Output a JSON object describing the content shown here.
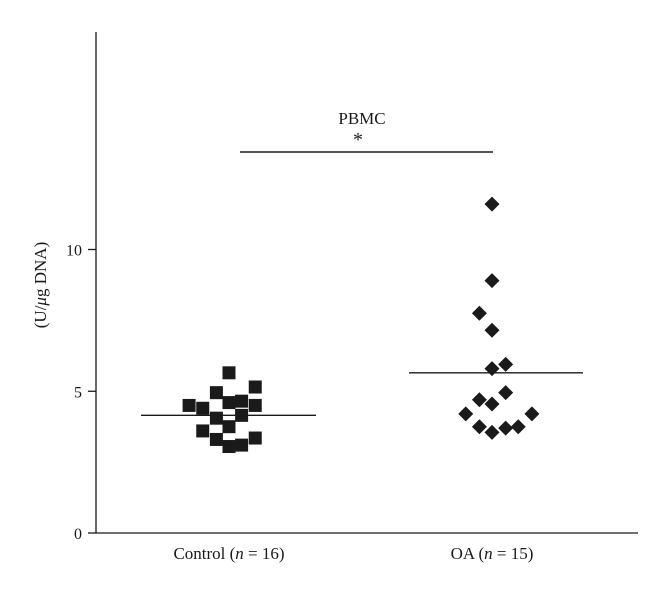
{
  "chart_data": {
    "type": "scatter",
    "title": "PBMC",
    "significance_marker": "*",
    "ylabel": "(U/μg DNA)",
    "ylabel_parts": {
      "prefix": "(U/",
      "italic": "μ",
      "suffix": "g DNA)"
    },
    "ylim": [
      0,
      14.6
    ],
    "y_ticks": [
      0,
      5,
      10
    ],
    "y_tick_labels": [
      "0",
      "5",
      "10"
    ],
    "grid": false,
    "categories": [
      {
        "id": "control",
        "name": "Control",
        "n_symbol": "n",
        "n_text": " = 16",
        "label": "Control (n = 16)"
      },
      {
        "id": "oa",
        "name": "OA",
        "n_symbol": "n",
        "n_text": " = 15",
        "label": "OA (n = 15)"
      }
    ],
    "series": [
      {
        "category": "Control",
        "marker": "square",
        "mean": 4.15,
        "points": [
          {
            "x": 1,
            "jitter": -0.38,
            "y": 4.5
          },
          {
            "x": 1,
            "jitter": -0.25,
            "y": 4.4
          },
          {
            "x": 1,
            "jitter": -0.25,
            "y": 3.6
          },
          {
            "x": 1,
            "jitter": -0.12,
            "y": 4.95
          },
          {
            "x": 1,
            "jitter": -0.12,
            "y": 4.05
          },
          {
            "x": 1,
            "jitter": -0.12,
            "y": 3.3
          },
          {
            "x": 1,
            "jitter": 0.0,
            "y": 5.65
          },
          {
            "x": 1,
            "jitter": 0.0,
            "y": 4.6
          },
          {
            "x": 1,
            "jitter": 0.0,
            "y": 3.75
          },
          {
            "x": 1,
            "jitter": 0.0,
            "y": 3.05
          },
          {
            "x": 1,
            "jitter": 0.12,
            "y": 4.65
          },
          {
            "x": 1,
            "jitter": 0.12,
            "y": 4.15
          },
          {
            "x": 1,
            "jitter": 0.12,
            "y": 3.1
          },
          {
            "x": 1,
            "jitter": 0.25,
            "y": 5.15
          },
          {
            "x": 1,
            "jitter": 0.25,
            "y": 4.5
          },
          {
            "x": 1,
            "jitter": 0.25,
            "y": 3.35
          }
        ]
      },
      {
        "category": "OA",
        "marker": "diamond",
        "mean": 5.65,
        "points": [
          {
            "x": 2,
            "jitter": 0.0,
            "y": 11.6
          },
          {
            "x": 2,
            "jitter": 0.0,
            "y": 8.9
          },
          {
            "x": 2,
            "jitter": -0.12,
            "y": 7.75
          },
          {
            "x": 2,
            "jitter": 0.0,
            "y": 7.15
          },
          {
            "x": 2,
            "jitter": 0.13,
            "y": 5.95
          },
          {
            "x": 2,
            "jitter": 0.0,
            "y": 5.8
          },
          {
            "x": 2,
            "jitter": 0.13,
            "y": 4.95
          },
          {
            "x": 2,
            "jitter": -0.12,
            "y": 4.7
          },
          {
            "x": 2,
            "jitter": 0.0,
            "y": 4.55
          },
          {
            "x": 2,
            "jitter": -0.25,
            "y": 4.2
          },
          {
            "x": 2,
            "jitter": 0.38,
            "y": 4.2
          },
          {
            "x": 2,
            "jitter": -0.12,
            "y": 3.75
          },
          {
            "x": 2,
            "jitter": 0.13,
            "y": 3.7
          },
          {
            "x": 2,
            "jitter": 0.25,
            "y": 3.75
          },
          {
            "x": 2,
            "jitter": 0.0,
            "y": 3.55
          }
        ]
      }
    ]
  }
}
